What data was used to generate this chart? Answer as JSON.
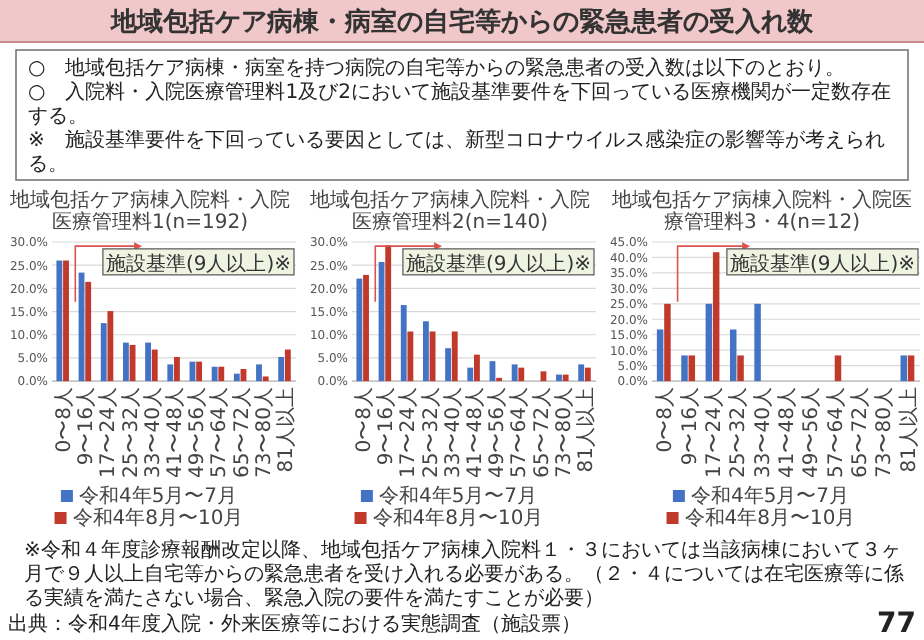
{
  "chart_data": [
    {
      "type": "bar",
      "title": "地域包括ケア病棟入院料・入院医療管理料1(n=192)",
      "categories": [
        "0〜8人",
        "9〜16人",
        "17〜24人",
        "25〜32人",
        "33〜40人",
        "41〜48人",
        "49〜56人",
        "57〜64人",
        "65〜72人",
        "73〜80人",
        "81人以上"
      ],
      "series": [
        {
          "name": "令和4年5月〜7月",
          "color": "#4472c4",
          "values": [
            26.0,
            23.4,
            12.5,
            8.3,
            8.3,
            3.6,
            4.2,
            3.1,
            1.6,
            3.6,
            5.2
          ]
        },
        {
          "name": "令和4年8月〜10月",
          "color": "#c0392b",
          "values": [
            26.0,
            21.4,
            15.1,
            7.8,
            6.8,
            5.2,
            4.2,
            3.1,
            2.6,
            1.0,
            6.8
          ]
        }
      ],
      "ylim": [
        0,
        30
      ],
      "yticks": [
        {
          "value": 0,
          "label": "0.0%"
        },
        {
          "value": 5,
          "label": "5.0%"
        },
        {
          "value": 10,
          "label": "10.0%"
        },
        {
          "value": 15,
          "label": "15.0%"
        },
        {
          "value": 20,
          "label": "20.0%"
        },
        {
          "value": 25,
          "label": "25.0%"
        },
        {
          "value": 30,
          "label": "30.0%"
        }
      ],
      "grid": "y",
      "legend": "bottom",
      "annotations": [
        "施設基準(9人以上)※",
        "地域包括ケア病棟・病室の自宅等からの緊急患者の受入れ数",
        "○　地域包括ケア病棟・病室を持つ病院の自宅等からの緊急患者の受入数は以下のとおり。",
        "○　入院料・入院医療管理料1及び2において施設基準要件を下回っている医療機関が一定数存在する。",
        "※　施設基準要件を下回っている要因としては、新型コロナウイルス感染症の影響等が考えられる。",
        "※令和４年度診療報酬改定以降、地域包括ケア病棟入院料１・３においては当該病棟において３ヶ月で９人以上自宅等からの緊急患者を受け入れる必要がある。（２・４については在宅医療等に係る実績を満たさない場合、緊急入院の要件を満たすことが必要）",
        "出典：令和4年度入院・外来医療等における実態調査（施設票）",
        "77"
      ]
    },
    {
      "type": "bar",
      "title": "地域包括ケア病棟入院料・入院医療管理料2(n=140)",
      "categories": [
        "0〜8人",
        "9〜16人",
        "17〜24人",
        "25〜32人",
        "33〜40人",
        "41〜48人",
        "49〜56人",
        "57〜64人",
        "65〜72人",
        "73〜80人",
        "81人以上"
      ],
      "series": [
        {
          "name": "令和4年5月〜7月",
          "color": "#4472c4",
          "values": [
            22.1,
            25.7,
            16.4,
            12.9,
            7.1,
            2.9,
            4.3,
            3.6,
            0,
            1.4,
            3.6
          ]
        },
        {
          "name": "令和4年8月〜10月",
          "color": "#c0392b",
          "values": [
            22.9,
            29.3,
            10.7,
            10.7,
            10.7,
            5.7,
            0.7,
            2.9,
            2.1,
            1.4,
            2.9
          ]
        }
      ],
      "ylim": [
        0,
        30
      ],
      "yticks": [
        {
          "value": 0,
          "label": "0.0%"
        },
        {
          "value": 5,
          "label": "5.0%"
        },
        {
          "value": 10,
          "label": "10.0%"
        },
        {
          "value": 15,
          "label": "15.0%"
        },
        {
          "value": 20,
          "label": "20.0%"
        },
        {
          "value": 25,
          "label": "25.0%"
        },
        {
          "value": 30,
          "label": "30.0%"
        }
      ],
      "grid": "y",
      "legend": "bottom",
      "annotations": [
        "施設基準(9人以上)※"
      ]
    },
    {
      "type": "bar",
      "title": "地域包括ケア病棟入院料・入院医療管理料3・4(n=12)",
      "categories": [
        "0〜8人",
        "9〜16人",
        "17〜24人",
        "25〜32人",
        "33〜40人",
        "41〜48人",
        "49〜56人",
        "57〜64人",
        "65〜72人",
        "73〜80人",
        "81人以上"
      ],
      "series": [
        {
          "name": "令和4年5月〜7月",
          "color": "#4472c4",
          "values": [
            16.7,
            8.3,
            25.0,
            16.7,
            25.0,
            0,
            0,
            0,
            0,
            0,
            8.3
          ]
        },
        {
          "name": "令和4年8月〜10月",
          "color": "#c0392b",
          "values": [
            25.0,
            8.3,
            41.7,
            8.3,
            0,
            0,
            0,
            8.3,
            0,
            0,
            8.3
          ]
        }
      ],
      "ylim": [
        0,
        45
      ],
      "yticks": [
        {
          "value": 0,
          "label": "0.0%"
        },
        {
          "value": 5,
          "label": "5.0%"
        },
        {
          "value": 10,
          "label": "10.0%"
        },
        {
          "value": 15,
          "label": "15.0%"
        },
        {
          "value": 20,
          "label": "20.0%"
        },
        {
          "value": 25,
          "label": "25.0%"
        },
        {
          "value": 30,
          "label": "30.0%"
        },
        {
          "value": 35,
          "label": "35.0%"
        },
        {
          "value": 40,
          "label": "40.0%"
        },
        {
          "value": 45,
          "label": "45.0%"
        }
      ],
      "grid": "y",
      "legend": "bottom",
      "annotations": [
        "施設基準(9人以上)※"
      ]
    }
  ]
}
